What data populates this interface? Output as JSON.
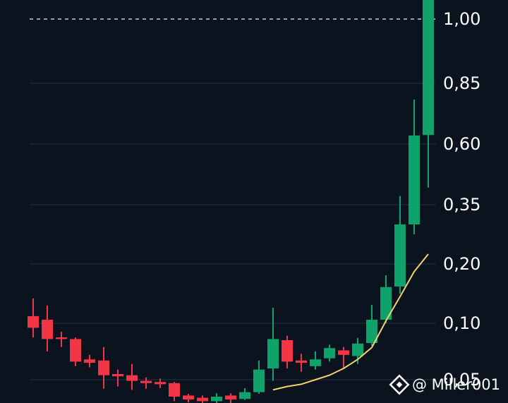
{
  "chart_data": {
    "type": "candlestick",
    "open": [
      0.112,
      0.106,
      0.0875,
      0.086,
      0.068,
      0.067,
      0.055,
      0.054,
      0.049,
      0.048,
      0.047,
      0.036,
      0.034,
      0.031,
      0.036,
      0.033,
      0.039,
      0.06,
      0.085,
      0.067,
      0.062,
      0.069,
      0.076,
      0.071,
      0.0825,
      0.106,
      0.162,
      0.3,
      0.637
    ],
    "close": [
      0.096,
      0.086,
      0.086,
      0.066,
      0.065,
      0.054,
      0.053,
      0.049,
      0.047,
      0.046,
      0.035,
      0.0325,
      0.031,
      0.035,
      0.0325,
      0.039,
      0.059,
      0.086,
      0.066,
      0.065,
      0.068,
      0.078,
      0.072,
      0.082,
      0.106,
      0.161,
      0.3,
      0.635,
      1.045
    ],
    "high": [
      0.142,
      0.13,
      0.0925,
      0.0875,
      0.072,
      0.079,
      0.059,
      0.064,
      0.052,
      0.051,
      0.048,
      0.0375,
      0.036,
      0.038,
      0.038,
      0.0425,
      0.067,
      0.126,
      0.089,
      0.073,
      0.075,
      0.081,
      0.079,
      0.087,
      0.131,
      0.181,
      0.386,
      0.783,
      1.045
    ],
    "low": [
      0.0875,
      0.075,
      0.079,
      0.062,
      0.061,
      0.042,
      0.044,
      0.041,
      0.042,
      0.0425,
      0.031,
      0.03,
      0.029,
      0.029,
      0.029,
      0.032,
      0.0375,
      0.049,
      0.06,
      0.057,
      0.059,
      0.066,
      0.06,
      0.064,
      0.08,
      0.1,
      0.15,
      0.275,
      0.42
    ],
    "up_color": "#0fa36b",
    "down_color": "#f23645",
    "line": {
      "color": "#f3d36b",
      "values": [
        null,
        null,
        null,
        null,
        null,
        null,
        null,
        null,
        null,
        null,
        null,
        null,
        null,
        null,
        null,
        null,
        null,
        0.041,
        0.044,
        0.046,
        0.05,
        0.054,
        0.06,
        0.068,
        0.0785,
        0.104,
        0.145,
        0.187,
        0.225
      ]
    },
    "yticks": [
      {
        "value": 1.0,
        "label": "1,00"
      },
      {
        "value": 0.85,
        "label": "0,85"
      },
      {
        "value": 0.6,
        "label": "0,60"
      },
      {
        "value": 0.35,
        "label": "0,35"
      },
      {
        "value": 0.2,
        "label": "0,20"
      },
      {
        "value": 0.1,
        "label": "0,10"
      },
      {
        "value": 0.05,
        "label": "0,05"
      }
    ],
    "reference_line": 1.0,
    "grid": true,
    "watermark": "@ Miller001"
  }
}
